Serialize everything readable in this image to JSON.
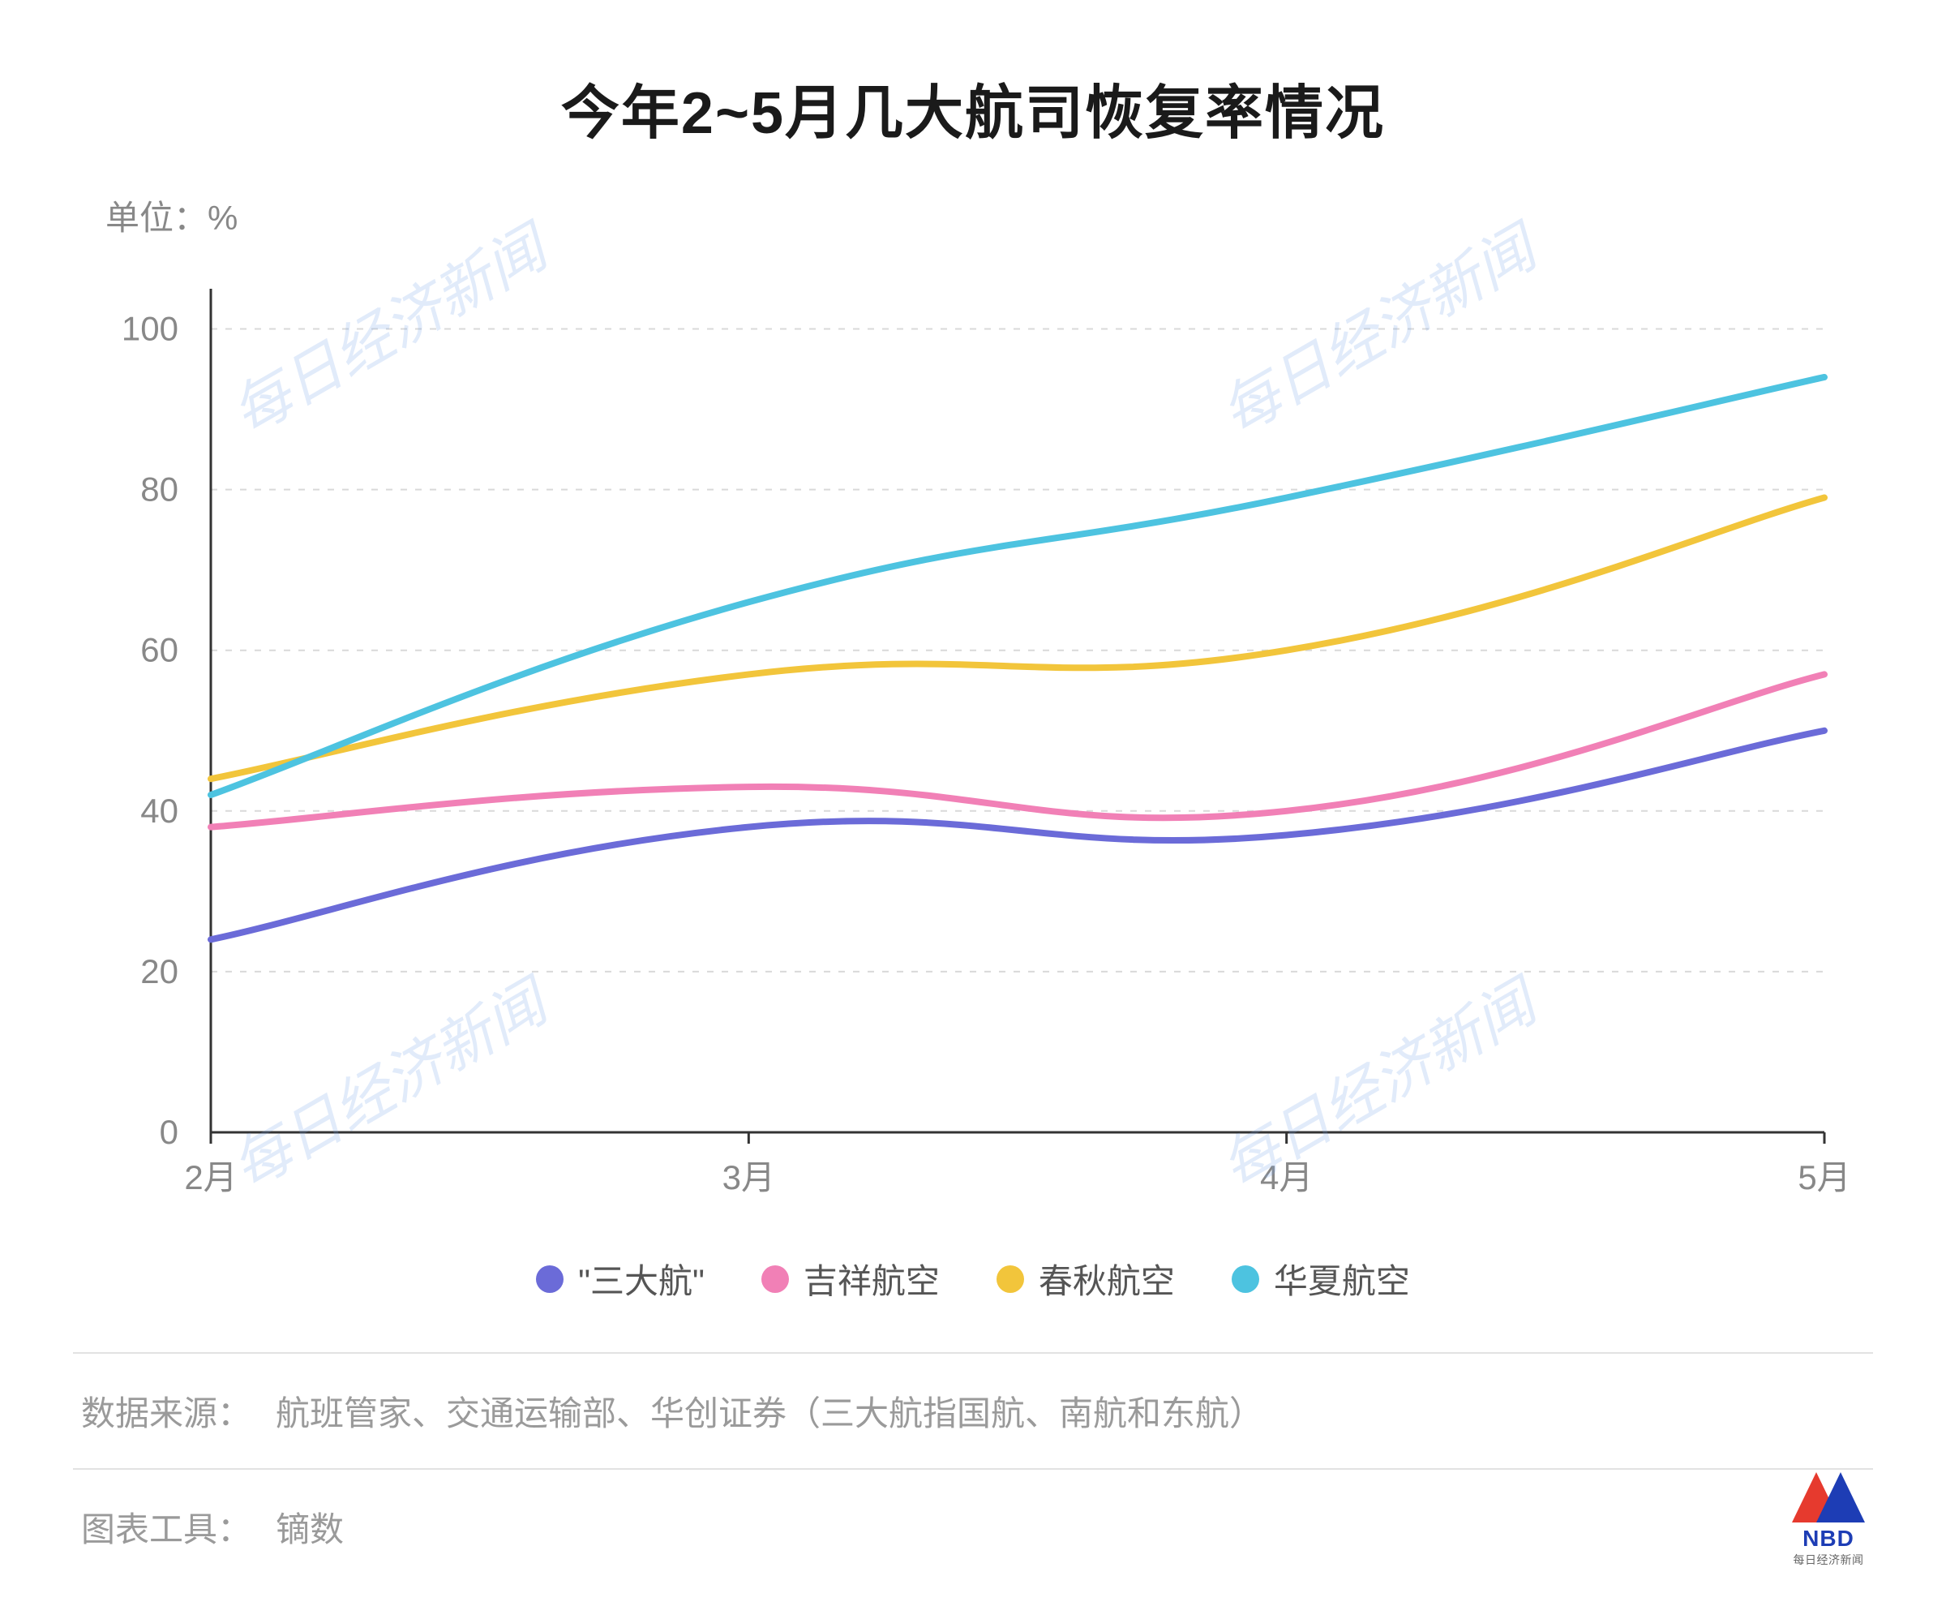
{
  "title": "今年2~5月几大航司恢复率情况",
  "unit_label": "单位：%",
  "chart": {
    "type": "line",
    "x_categories": [
      "2月",
      "3月",
      "4月",
      "5月"
    ],
    "y": {
      "min": 0,
      "max": 105,
      "ticks": [
        0,
        20,
        40,
        60,
        80,
        100
      ]
    },
    "grid_color": "#d9d9d9",
    "axis_color": "#333333",
    "background_color": "#ffffff",
    "line_width": 8,
    "tick_fontsize": 42,
    "tick_color": "#888888",
    "series": [
      {
        "name": "\"三大航\"",
        "color": "#6b6bd8",
        "values": [
          24,
          38,
          37,
          50
        ]
      },
      {
        "name": "吉祥航空",
        "color": "#f180b6",
        "values": [
          38,
          43,
          40,
          57
        ]
      },
      {
        "name": "春秋航空",
        "color": "#f2c53b",
        "values": [
          44,
          57,
          60,
          79
        ]
      },
      {
        "name": "华夏航空",
        "color": "#4dc3e0",
        "values": [
          42,
          66,
          79,
          94
        ]
      }
    ]
  },
  "legend_fontsize": 42,
  "source_label": "数据来源：",
  "source_text": "航班管家、交通运输部、华创证券（三大航指国航、南航和东航）",
  "tool_label": "图表工具：",
  "tool_text": "镝数",
  "watermark_text": "每日经济新闻",
  "watermark_color": "rgba(120,165,230,0.22)",
  "logo": {
    "text": "NBD",
    "sub": "每日经济新闻",
    "red": "#e63a2e",
    "blue": "#1d3db5"
  }
}
